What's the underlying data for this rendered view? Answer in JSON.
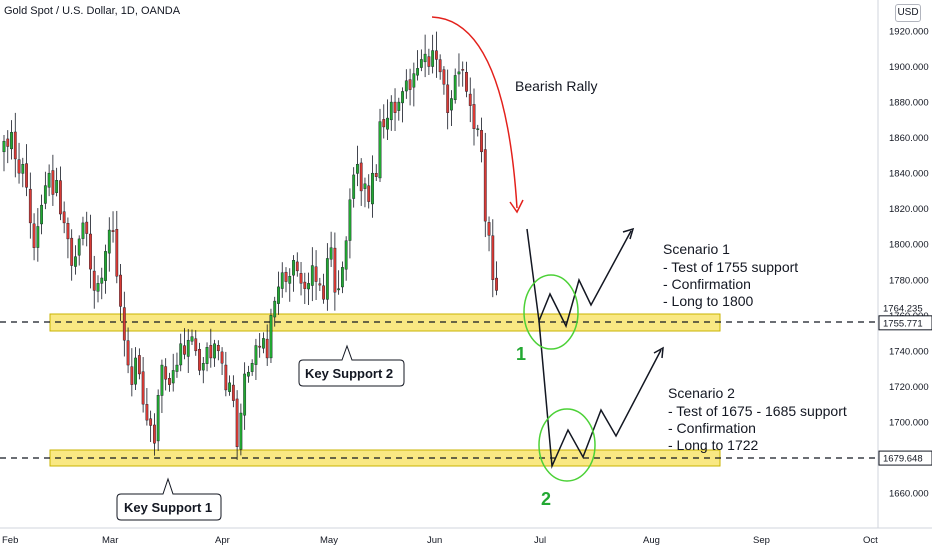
{
  "header": {
    "title": "Gold Spot / U.S. Dollar, 1D, OANDA",
    "currency": "USD"
  },
  "chart_data": {
    "type": "candlestick",
    "x_ticks": [
      "Feb",
      "Mar",
      "Apr",
      "May",
      "Jun",
      "Jul",
      "Aug",
      "Sep",
      "Oct"
    ],
    "y_ticks": [
      1660,
      1680,
      1700,
      1720,
      1740,
      1760,
      1780,
      1800,
      1820,
      1840,
      1860,
      1880,
      1900,
      1920
    ],
    "ylim": [
      1653,
      1935
    ],
    "price_labels": [
      {
        "value": 1764.235,
        "text": "1764.235",
        "highlight": false
      },
      {
        "value": 1755.771,
        "text": "1755.771",
        "highlight": true
      },
      {
        "value": 1679.648,
        "text": "1679.648",
        "highlight": true
      }
    ],
    "series": [
      {
        "name": "XAU/USD",
        "closes": [
          1858,
          1855,
          1863,
          1848,
          1840,
          1845,
          1832,
          1812,
          1798,
          1810,
          1822,
          1833,
          1840,
          1828,
          1836,
          1817,
          1812,
          1803,
          1788,
          1793,
          1803,
          1812,
          1806,
          1786,
          1774,
          1778,
          1781,
          1796,
          1808,
          1807,
          1782,
          1765,
          1746,
          1732,
          1721,
          1736,
          1727,
          1710,
          1701,
          1698,
          1688,
          1715,
          1732,
          1724,
          1721,
          1729,
          1732,
          1744,
          1738,
          1746,
          1748,
          1740,
          1729,
          1733,
          1742,
          1736,
          1744,
          1740,
          1733,
          1718,
          1722,
          1712,
          1686,
          1705,
          1727,
          1728,
          1733,
          1743,
          1742,
          1747,
          1736,
          1760,
          1768,
          1776,
          1784,
          1779,
          1782,
          1791,
          1785,
          1778,
          1775,
          1778,
          1788,
          1779,
          1777,
          1769,
          1792,
          1798,
          1773,
          1775,
          1787,
          1802,
          1825,
          1839,
          1845,
          1830,
          1834,
          1824,
          1840,
          1838,
          1869,
          1866,
          1871,
          1880,
          1874,
          1880,
          1886,
          1892,
          1887,
          1896,
          1899,
          1904,
          1907,
          1900,
          1909,
          1904,
          1897,
          1890,
          1874,
          1882,
          1895,
          1897,
          1898,
          1886,
          1878,
          1865,
          1865,
          1852,
          1813,
          1805,
          1780,
          1774
        ]
      }
    ]
  },
  "annotations": {
    "bearish_rally": "Bearish Rally",
    "key_support_1": "Key Support 1",
    "key_support_2": "Key Support 2",
    "scenario1": {
      "number": "1",
      "lines": [
        "Scenario 1",
        "- Test of 1755 support",
        "- Confirmation",
        "- Long to 1800"
      ]
    },
    "scenario2": {
      "number": "2",
      "lines": [
        "Scenario 2",
        "- Test of 1675 - 1685 support",
        "- Confirmation",
        "- Long to 1722"
      ]
    }
  },
  "colors": {
    "up": "#22a832",
    "down": "#d83a35",
    "support_zone": "#f9e883",
    "support_border": "#c9b300",
    "arrow_red": "#e3211c",
    "circle_green": "#4cd137",
    "highlight_label": "#131722"
  }
}
